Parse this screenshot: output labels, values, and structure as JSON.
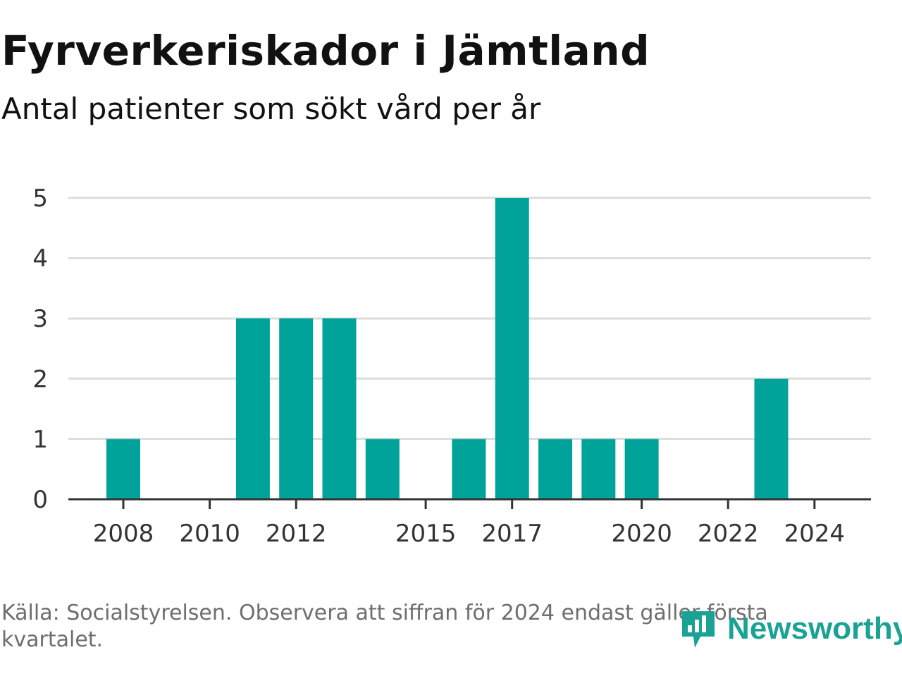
{
  "title": "Fyrverkeriskador i Jämtland",
  "subtitle": "Antal patienter som sökt vård per år",
  "source": "Källa: Socialstyrelsen. Observera att siffran för 2024 endast gäller första kvartalet.",
  "brand": {
    "name": "Newsworthy",
    "icon": "newsworthy-logo-icon",
    "color": "#1aa394"
  },
  "colors": {
    "bar": "#00a39a",
    "grid": "#dcdcdc",
    "axis": "#333333",
    "text": "#111111",
    "source": "#6e6e6e"
  },
  "chart_data": {
    "type": "bar",
    "title": "Fyrverkeriskador i Jämtland",
    "subtitle": "Antal patienter som sökt vård per år",
    "xlabel": "",
    "ylabel": "",
    "categories": [
      "2008",
      "2009",
      "2010",
      "2011",
      "2012",
      "2013",
      "2014",
      "2015",
      "2016",
      "2017",
      "2018",
      "2019",
      "2020",
      "2021",
      "2022",
      "2023",
      "2024"
    ],
    "values": [
      1,
      0,
      0,
      3,
      3,
      3,
      1,
      0,
      1,
      5,
      1,
      1,
      1,
      0,
      0,
      2,
      0
    ],
    "x_tick_labels": [
      "2008",
      "2010",
      "2012",
      "2015",
      "2017",
      "2020",
      "2022",
      "2024"
    ],
    "y_ticks": [
      0,
      1,
      2,
      3,
      4,
      5
    ],
    "ylim": [
      0,
      5
    ],
    "grid": true,
    "legend": "none"
  }
}
